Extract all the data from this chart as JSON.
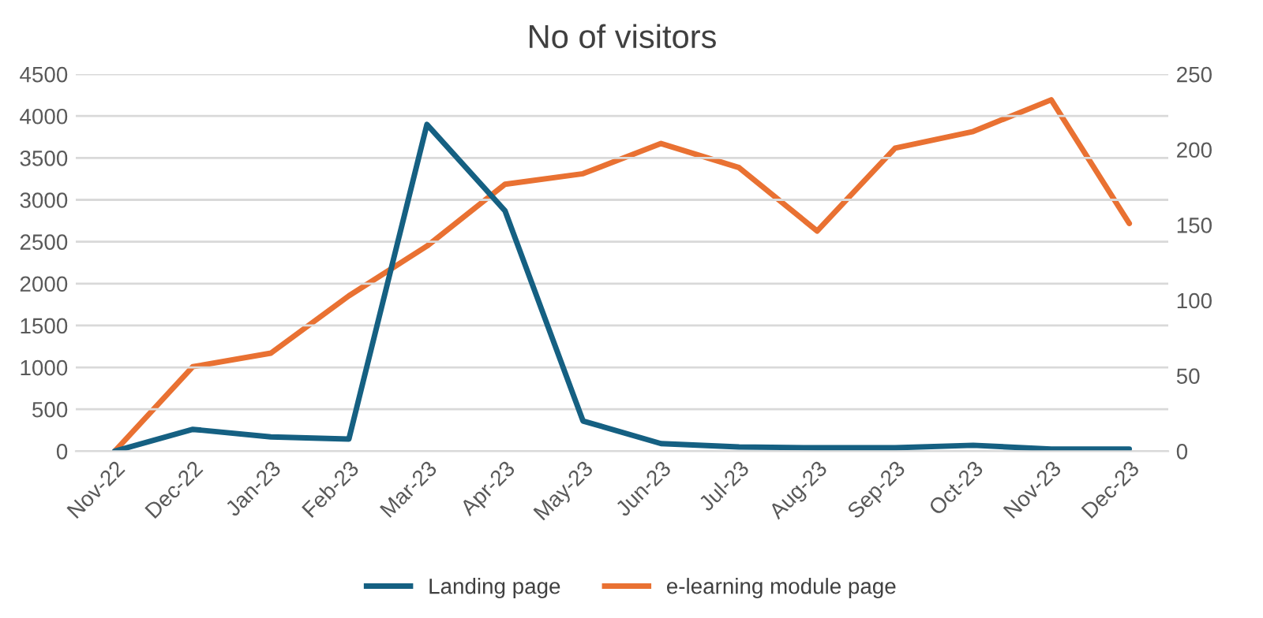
{
  "chart_data": {
    "type": "line",
    "title": "No of visitors",
    "categories": [
      "Nov-22",
      "Dec-22",
      "Jan-23",
      "Feb-23",
      "Mar-23",
      "Apr-23",
      "May-23",
      "Jun-23",
      "Jul-23",
      "Aug-23",
      "Sep-23",
      "Oct-23",
      "Nov-23",
      "Dec-23"
    ],
    "series": [
      {
        "name": "Landing page",
        "color": "#156082",
        "values": [
          0,
          260,
          170,
          145,
          3900,
          2870,
          360,
          90,
          50,
          40,
          40,
          70,
          25,
          25
        ]
      },
      {
        "name": "e-learning module page",
        "color": "#e97132",
        "axis": "y2",
        "values": [
          0,
          56,
          65,
          103,
          136,
          177,
          184,
          204,
          188,
          146,
          201,
          212,
          233,
          151
        ]
      }
    ],
    "ylim": [
      0,
      4500
    ],
    "yticks": [
      0,
      500,
      1000,
      1500,
      2000,
      2500,
      3000,
      3500,
      4000,
      4500
    ],
    "y2lim": [
      0,
      250
    ],
    "y2ticks": [
      0,
      50,
      100,
      150,
      200,
      250
    ],
    "grid": "y",
    "legend": "bottom",
    "marker": "none",
    "line_style": "solid"
  }
}
